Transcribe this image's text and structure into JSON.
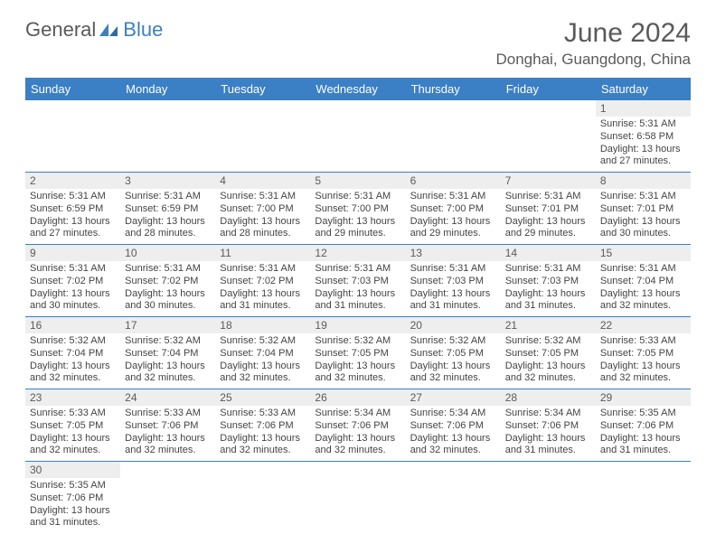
{
  "logo": {
    "word1": "General",
    "word2": "Blue"
  },
  "header": {
    "title": "June 2024",
    "location": "Donghai, Guangdong, China"
  },
  "colors": {
    "header_bg": "#3b7fc4",
    "header_fg": "#ffffff",
    "daynum_bg": "#eeeeee",
    "text": "#5a5a5a",
    "border": "#3b7fc4"
  },
  "weekdays": [
    "Sunday",
    "Monday",
    "Tuesday",
    "Wednesday",
    "Thursday",
    "Friday",
    "Saturday"
  ],
  "weeks": [
    [
      null,
      null,
      null,
      null,
      null,
      null,
      {
        "n": "1",
        "sr": "Sunrise: 5:31 AM",
        "ss": "Sunset: 6:58 PM",
        "d1": "Daylight: 13 hours",
        "d2": "and 27 minutes."
      }
    ],
    [
      {
        "n": "2",
        "sr": "Sunrise: 5:31 AM",
        "ss": "Sunset: 6:59 PM",
        "d1": "Daylight: 13 hours",
        "d2": "and 27 minutes."
      },
      {
        "n": "3",
        "sr": "Sunrise: 5:31 AM",
        "ss": "Sunset: 6:59 PM",
        "d1": "Daylight: 13 hours",
        "d2": "and 28 minutes."
      },
      {
        "n": "4",
        "sr": "Sunrise: 5:31 AM",
        "ss": "Sunset: 7:00 PM",
        "d1": "Daylight: 13 hours",
        "d2": "and 28 minutes."
      },
      {
        "n": "5",
        "sr": "Sunrise: 5:31 AM",
        "ss": "Sunset: 7:00 PM",
        "d1": "Daylight: 13 hours",
        "d2": "and 29 minutes."
      },
      {
        "n": "6",
        "sr": "Sunrise: 5:31 AM",
        "ss": "Sunset: 7:00 PM",
        "d1": "Daylight: 13 hours",
        "d2": "and 29 minutes."
      },
      {
        "n": "7",
        "sr": "Sunrise: 5:31 AM",
        "ss": "Sunset: 7:01 PM",
        "d1": "Daylight: 13 hours",
        "d2": "and 29 minutes."
      },
      {
        "n": "8",
        "sr": "Sunrise: 5:31 AM",
        "ss": "Sunset: 7:01 PM",
        "d1": "Daylight: 13 hours",
        "d2": "and 30 minutes."
      }
    ],
    [
      {
        "n": "9",
        "sr": "Sunrise: 5:31 AM",
        "ss": "Sunset: 7:02 PM",
        "d1": "Daylight: 13 hours",
        "d2": "and 30 minutes."
      },
      {
        "n": "10",
        "sr": "Sunrise: 5:31 AM",
        "ss": "Sunset: 7:02 PM",
        "d1": "Daylight: 13 hours",
        "d2": "and 30 minutes."
      },
      {
        "n": "11",
        "sr": "Sunrise: 5:31 AM",
        "ss": "Sunset: 7:02 PM",
        "d1": "Daylight: 13 hours",
        "d2": "and 31 minutes."
      },
      {
        "n": "12",
        "sr": "Sunrise: 5:31 AM",
        "ss": "Sunset: 7:03 PM",
        "d1": "Daylight: 13 hours",
        "d2": "and 31 minutes."
      },
      {
        "n": "13",
        "sr": "Sunrise: 5:31 AM",
        "ss": "Sunset: 7:03 PM",
        "d1": "Daylight: 13 hours",
        "d2": "and 31 minutes."
      },
      {
        "n": "14",
        "sr": "Sunrise: 5:31 AM",
        "ss": "Sunset: 7:03 PM",
        "d1": "Daylight: 13 hours",
        "d2": "and 31 minutes."
      },
      {
        "n": "15",
        "sr": "Sunrise: 5:31 AM",
        "ss": "Sunset: 7:04 PM",
        "d1": "Daylight: 13 hours",
        "d2": "and 32 minutes."
      }
    ],
    [
      {
        "n": "16",
        "sr": "Sunrise: 5:32 AM",
        "ss": "Sunset: 7:04 PM",
        "d1": "Daylight: 13 hours",
        "d2": "and 32 minutes."
      },
      {
        "n": "17",
        "sr": "Sunrise: 5:32 AM",
        "ss": "Sunset: 7:04 PM",
        "d1": "Daylight: 13 hours",
        "d2": "and 32 minutes."
      },
      {
        "n": "18",
        "sr": "Sunrise: 5:32 AM",
        "ss": "Sunset: 7:04 PM",
        "d1": "Daylight: 13 hours",
        "d2": "and 32 minutes."
      },
      {
        "n": "19",
        "sr": "Sunrise: 5:32 AM",
        "ss": "Sunset: 7:05 PM",
        "d1": "Daylight: 13 hours",
        "d2": "and 32 minutes."
      },
      {
        "n": "20",
        "sr": "Sunrise: 5:32 AM",
        "ss": "Sunset: 7:05 PM",
        "d1": "Daylight: 13 hours",
        "d2": "and 32 minutes."
      },
      {
        "n": "21",
        "sr": "Sunrise: 5:32 AM",
        "ss": "Sunset: 7:05 PM",
        "d1": "Daylight: 13 hours",
        "d2": "and 32 minutes."
      },
      {
        "n": "22",
        "sr": "Sunrise: 5:33 AM",
        "ss": "Sunset: 7:05 PM",
        "d1": "Daylight: 13 hours",
        "d2": "and 32 minutes."
      }
    ],
    [
      {
        "n": "23",
        "sr": "Sunrise: 5:33 AM",
        "ss": "Sunset: 7:05 PM",
        "d1": "Daylight: 13 hours",
        "d2": "and 32 minutes."
      },
      {
        "n": "24",
        "sr": "Sunrise: 5:33 AM",
        "ss": "Sunset: 7:06 PM",
        "d1": "Daylight: 13 hours",
        "d2": "and 32 minutes."
      },
      {
        "n": "25",
        "sr": "Sunrise: 5:33 AM",
        "ss": "Sunset: 7:06 PM",
        "d1": "Daylight: 13 hours",
        "d2": "and 32 minutes."
      },
      {
        "n": "26",
        "sr": "Sunrise: 5:34 AM",
        "ss": "Sunset: 7:06 PM",
        "d1": "Daylight: 13 hours",
        "d2": "and 32 minutes."
      },
      {
        "n": "27",
        "sr": "Sunrise: 5:34 AM",
        "ss": "Sunset: 7:06 PM",
        "d1": "Daylight: 13 hours",
        "d2": "and 32 minutes."
      },
      {
        "n": "28",
        "sr": "Sunrise: 5:34 AM",
        "ss": "Sunset: 7:06 PM",
        "d1": "Daylight: 13 hours",
        "d2": "and 31 minutes."
      },
      {
        "n": "29",
        "sr": "Sunrise: 5:35 AM",
        "ss": "Sunset: 7:06 PM",
        "d1": "Daylight: 13 hours",
        "d2": "and 31 minutes."
      }
    ],
    [
      {
        "n": "30",
        "sr": "Sunrise: 5:35 AM",
        "ss": "Sunset: 7:06 PM",
        "d1": "Daylight: 13 hours",
        "d2": "and 31 minutes."
      },
      null,
      null,
      null,
      null,
      null,
      null
    ]
  ]
}
